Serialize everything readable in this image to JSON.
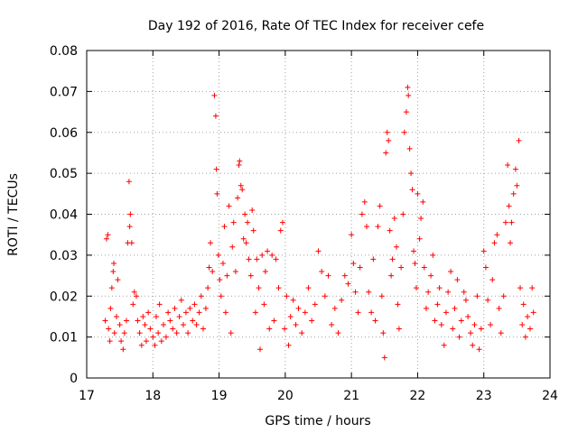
{
  "chart_data": {
    "type": "scatter",
    "title": "Day 192 of 2016, Rate Of TEC Index for receiver cefe",
    "xlabel": "GPS time / hours",
    "ylabel": "ROTI / TECUs",
    "xlim": [
      17,
      24
    ],
    "ylim": [
      0,
      0.08
    ],
    "x_ticks": [
      "17",
      "18",
      "19",
      "20",
      "21",
      "22",
      "23",
      "24"
    ],
    "y_ticks": [
      "0",
      "0.01",
      "0.02",
      "0.03",
      "0.04",
      "0.05",
      "0.06",
      "0.07",
      "0.08"
    ],
    "grid": true,
    "marker": "+",
    "color": "#ff0000",
    "series": [
      {
        "name": "ROTI",
        "points": [
          [
            17.28,
            0.014
          ],
          [
            17.3,
            0.034
          ],
          [
            17.32,
            0.035
          ],
          [
            17.33,
            0.012
          ],
          [
            17.35,
            0.009
          ],
          [
            17.36,
            0.017
          ],
          [
            17.38,
            0.022
          ],
          [
            17.4,
            0.026
          ],
          [
            17.41,
            0.028
          ],
          [
            17.42,
            0.011
          ],
          [
            17.45,
            0.015
          ],
          [
            17.47,
            0.024
          ],
          [
            17.5,
            0.013
          ],
          [
            17.52,
            0.009
          ],
          [
            17.55,
            0.007
          ],
          [
            17.57,
            0.011
          ],
          [
            17.6,
            0.014
          ],
          [
            17.62,
            0.033
          ],
          [
            17.64,
            0.048
          ],
          [
            17.65,
            0.037
          ],
          [
            17.66,
            0.04
          ],
          [
            17.68,
            0.033
          ],
          [
            17.7,
            0.018
          ],
          [
            17.72,
            0.021
          ],
          [
            17.75,
            0.02
          ],
          [
            17.77,
            0.014
          ],
          [
            17.8,
            0.011
          ],
          [
            17.83,
            0.008
          ],
          [
            17.85,
            0.015
          ],
          [
            17.88,
            0.013
          ],
          [
            17.9,
            0.009
          ],
          [
            17.93,
            0.016
          ],
          [
            17.96,
            0.012
          ],
          [
            18.0,
            0.01
          ],
          [
            18.03,
            0.008
          ],
          [
            18.05,
            0.015
          ],
          [
            18.08,
            0.011
          ],
          [
            18.1,
            0.018
          ],
          [
            18.13,
            0.009
          ],
          [
            18.16,
            0.013
          ],
          [
            18.2,
            0.01
          ],
          [
            18.23,
            0.016
          ],
          [
            18.26,
            0.014
          ],
          [
            18.3,
            0.012
          ],
          [
            18.33,
            0.017
          ],
          [
            18.36,
            0.011
          ],
          [
            18.4,
            0.015
          ],
          [
            18.43,
            0.019
          ],
          [
            18.46,
            0.013
          ],
          [
            18.5,
            0.016
          ],
          [
            18.53,
            0.011
          ],
          [
            18.56,
            0.017
          ],
          [
            18.6,
            0.014
          ],
          [
            18.63,
            0.018
          ],
          [
            18.66,
            0.013
          ],
          [
            18.7,
            0.016
          ],
          [
            18.73,
            0.02
          ],
          [
            18.76,
            0.012
          ],
          [
            18.8,
            0.017
          ],
          [
            18.83,
            0.022
          ],
          [
            18.85,
            0.027
          ],
          [
            18.87,
            0.033
          ],
          [
            18.9,
            0.026
          ],
          [
            18.93,
            0.069
          ],
          [
            18.95,
            0.064
          ],
          [
            18.96,
            0.051
          ],
          [
            18.97,
            0.045
          ],
          [
            18.99,
            0.03
          ],
          [
            19.01,
            0.024
          ],
          [
            19.03,
            0.02
          ],
          [
            19.06,
            0.028
          ],
          [
            19.08,
            0.037
          ],
          [
            19.1,
            0.016
          ],
          [
            19.12,
            0.025
          ],
          [
            19.15,
            0.042
          ],
          [
            19.18,
            0.011
          ],
          [
            19.2,
            0.032
          ],
          [
            19.22,
            0.038
          ],
          [
            19.25,
            0.026
          ],
          [
            19.28,
            0.044
          ],
          [
            19.3,
            0.052
          ],
          [
            19.31,
            0.053
          ],
          [
            19.33,
            0.047
          ],
          [
            19.35,
            0.046
          ],
          [
            19.37,
            0.034
          ],
          [
            19.39,
            0.04
          ],
          [
            19.41,
            0.033
          ],
          [
            19.43,
            0.038
          ],
          [
            19.45,
            0.029
          ],
          [
            19.48,
            0.025
          ],
          [
            19.5,
            0.041
          ],
          [
            19.52,
            0.036
          ],
          [
            19.55,
            0.016
          ],
          [
            19.57,
            0.029
          ],
          [
            19.6,
            0.022
          ],
          [
            19.62,
            0.007
          ],
          [
            19.65,
            0.03
          ],
          [
            19.68,
            0.018
          ],
          [
            19.7,
            0.026
          ],
          [
            19.73,
            0.031
          ],
          [
            19.76,
            0.012
          ],
          [
            19.8,
            0.03
          ],
          [
            19.83,
            0.014
          ],
          [
            19.86,
            0.029
          ],
          [
            19.9,
            0.022
          ],
          [
            19.93,
            0.036
          ],
          [
            19.96,
            0.038
          ],
          [
            19.99,
            0.012
          ],
          [
            20.02,
            0.02
          ],
          [
            20.05,
            0.008
          ],
          [
            20.08,
            0.015
          ],
          [
            20.12,
            0.019
          ],
          [
            20.16,
            0.013
          ],
          [
            20.2,
            0.017
          ],
          [
            20.25,
            0.011
          ],
          [
            20.3,
            0.016
          ],
          [
            20.35,
            0.022
          ],
          [
            20.4,
            0.014
          ],
          [
            20.45,
            0.018
          ],
          [
            20.5,
            0.031
          ],
          [
            20.55,
            0.026
          ],
          [
            20.6,
            0.02
          ],
          [
            20.65,
            0.025
          ],
          [
            20.7,
            0.013
          ],
          [
            20.75,
            0.017
          ],
          [
            20.8,
            0.011
          ],
          [
            20.85,
            0.019
          ],
          [
            20.9,
            0.025
          ],
          [
            20.95,
            0.023
          ],
          [
            21.0,
            0.035
          ],
          [
            21.03,
            0.028
          ],
          [
            21.06,
            0.021
          ],
          [
            21.1,
            0.016
          ],
          [
            21.13,
            0.027
          ],
          [
            21.16,
            0.04
          ],
          [
            21.2,
            0.043
          ],
          [
            21.23,
            0.037
          ],
          [
            21.26,
            0.021
          ],
          [
            21.3,
            0.016
          ],
          [
            21.33,
            0.029
          ],
          [
            21.36,
            0.014
          ],
          [
            21.4,
            0.037
          ],
          [
            21.43,
            0.042
          ],
          [
            21.46,
            0.02
          ],
          [
            21.48,
            0.011
          ],
          [
            21.5,
            0.005
          ],
          [
            21.52,
            0.055
          ],
          [
            21.54,
            0.06
          ],
          [
            21.56,
            0.058
          ],
          [
            21.58,
            0.036
          ],
          [
            21.6,
            0.025
          ],
          [
            21.62,
            0.029
          ],
          [
            21.65,
            0.039
          ],
          [
            21.68,
            0.032
          ],
          [
            21.7,
            0.018
          ],
          [
            21.72,
            0.012
          ],
          [
            21.75,
            0.027
          ],
          [
            21.78,
            0.04
          ],
          [
            21.8,
            0.06
          ],
          [
            21.83,
            0.065
          ],
          [
            21.85,
            0.071
          ],
          [
            21.86,
            0.069
          ],
          [
            21.88,
            0.056
          ],
          [
            21.9,
            0.05
          ],
          [
            21.92,
            0.046
          ],
          [
            21.94,
            0.031
          ],
          [
            21.96,
            0.028
          ],
          [
            21.98,
            0.022
          ],
          [
            22.0,
            0.045
          ],
          [
            22.03,
            0.034
          ],
          [
            22.05,
            0.039
          ],
          [
            22.08,
            0.043
          ],
          [
            22.1,
            0.027
          ],
          [
            22.13,
            0.017
          ],
          [
            22.16,
            0.021
          ],
          [
            22.2,
            0.025
          ],
          [
            22.23,
            0.03
          ],
          [
            22.26,
            0.014
          ],
          [
            22.3,
            0.018
          ],
          [
            22.33,
            0.022
          ],
          [
            22.36,
            0.013
          ],
          [
            22.4,
            0.008
          ],
          [
            22.43,
            0.016
          ],
          [
            22.46,
            0.021
          ],
          [
            22.5,
            0.026
          ],
          [
            22.53,
            0.012
          ],
          [
            22.56,
            0.017
          ],
          [
            22.6,
            0.024
          ],
          [
            22.63,
            0.01
          ],
          [
            22.66,
            0.014
          ],
          [
            22.7,
            0.021
          ],
          [
            22.73,
            0.019
          ],
          [
            22.76,
            0.015
          ],
          [
            22.8,
            0.011
          ],
          [
            22.83,
            0.008
          ],
          [
            22.86,
            0.013
          ],
          [
            22.9,
            0.02
          ],
          [
            22.93,
            0.007
          ],
          [
            22.96,
            0.012
          ],
          [
            23.0,
            0.031
          ],
          [
            23.03,
            0.027
          ],
          [
            23.06,
            0.019
          ],
          [
            23.1,
            0.013
          ],
          [
            23.13,
            0.024
          ],
          [
            23.16,
            0.033
          ],
          [
            23.2,
            0.035
          ],
          [
            23.23,
            0.017
          ],
          [
            23.26,
            0.011
          ],
          [
            23.3,
            0.02
          ],
          [
            23.33,
            0.038
          ],
          [
            23.36,
            0.052
          ],
          [
            23.38,
            0.042
          ],
          [
            23.4,
            0.033
          ],
          [
            23.42,
            0.038
          ],
          [
            23.45,
            0.045
          ],
          [
            23.48,
            0.051
          ],
          [
            23.5,
            0.047
          ],
          [
            23.53,
            0.058
          ],
          [
            23.55,
            0.022
          ],
          [
            23.58,
            0.013
          ],
          [
            23.6,
            0.018
          ],
          [
            23.63,
            0.01
          ],
          [
            23.66,
            0.015
          ],
          [
            23.7,
            0.012
          ],
          [
            23.73,
            0.022
          ],
          [
            23.75,
            0.016
          ]
        ]
      }
    ]
  }
}
